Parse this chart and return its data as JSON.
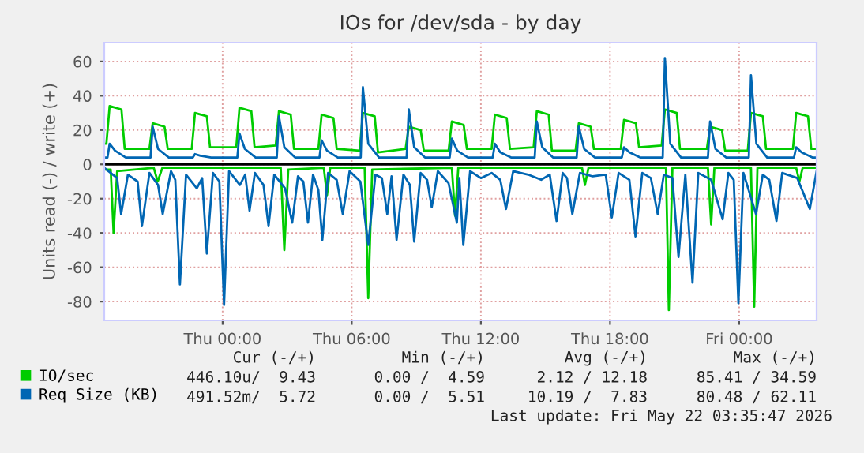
{
  "chart_data": {
    "type": "line",
    "title": "IOs for /dev/sda - by day",
    "ylabel": "Units read (-) / write (+)",
    "xlim": [
      "2026-05-20T18:30",
      "2026-05-22T03:36"
    ],
    "xticks": [
      {
        "value": "2026-05-21T00:00",
        "label": "Thu 00:00"
      },
      {
        "value": "2026-05-21T06:00",
        "label": "Thu 06:00"
      },
      {
        "value": "2026-05-21T12:00",
        "label": "Thu 12:00"
      },
      {
        "value": "2026-05-21T18:00",
        "label": "Thu 18:00"
      },
      {
        "value": "2026-05-22T00:00",
        "label": "Fri 00:00"
      }
    ],
    "ylim": [
      -91,
      71
    ],
    "yticks": [
      -80,
      -60,
      -40,
      -20,
      0,
      20,
      40,
      60
    ],
    "grid": true,
    "legend": "bottom",
    "marker": "none",
    "line_style": "solid",
    "ref_lines": [
      {
        "axis": "y",
        "value": 0,
        "color": "#000000"
      }
    ],
    "series": [
      {
        "name": "IO/sec",
        "color": "#00cc00",
        "x": [
          "2026-05-20T18:30",
          "2026-05-20T18:36",
          "2026-05-20T18:45",
          "2026-05-20T19:18",
          "2026-05-20T19:27",
          "2026-05-20T20:36",
          "2026-05-20T20:45",
          "2026-05-20T21:18",
          "2026-05-20T21:27",
          "2026-05-20T22:34",
          "2026-05-20T22:43",
          "2026-05-20T23:16",
          "2026-05-20T23:25",
          "2026-05-21T00:38",
          "2026-05-21T00:47",
          "2026-05-21T01:20",
          "2026-05-21T01:29",
          "2026-05-21T02:28",
          "2026-05-21T02:37",
          "2026-05-21T03:10",
          "2026-05-21T03:19",
          "2026-05-21T04:27",
          "2026-05-21T04:36",
          "2026-05-21T05:09",
          "2026-05-21T05:18",
          "2026-05-21T06:22",
          "2026-05-21T06:31",
          "2026-05-21T07:04",
          "2026-05-21T07:13",
          "2026-05-21T08:30",
          "2026-05-21T08:39",
          "2026-05-21T09:12",
          "2026-05-21T09:21",
          "2026-05-21T10:30",
          "2026-05-21T10:39",
          "2026-05-21T11:12",
          "2026-05-21T11:21",
          "2026-05-21T12:30",
          "2026-05-21T12:39",
          "2026-05-21T13:12",
          "2026-05-21T13:21",
          "2026-05-21T14:27",
          "2026-05-21T14:36",
          "2026-05-21T15:09",
          "2026-05-21T15:18",
          "2026-05-21T16:24",
          "2026-05-21T16:33",
          "2026-05-21T17:06",
          "2026-05-21T17:15",
          "2026-05-21T18:30",
          "2026-05-21T18:39",
          "2026-05-21T19:12",
          "2026-05-21T19:21",
          "2026-05-21T20:24",
          "2026-05-21T20:33",
          "2026-05-21T21:06",
          "2026-05-21T21:15",
          "2026-05-21T22:30",
          "2026-05-21T22:39",
          "2026-05-21T23:12",
          "2026-05-21T23:21",
          "2026-05-22T00:24",
          "2026-05-22T00:33",
          "2026-05-22T01:06",
          "2026-05-22T01:15",
          "2026-05-22T02:30",
          "2026-05-22T02:39",
          "2026-05-22T03:12",
          "2026-05-22T03:21",
          "2026-05-22T03:36"
        ],
        "values": [
          12,
          12,
          34,
          32,
          9,
          9,
          24,
          22,
          9,
          9,
          30,
          28,
          10,
          10,
          33,
          31,
          10,
          11,
          31,
          29,
          9,
          9,
          29,
          27,
          9,
          8,
          30,
          28,
          7,
          9,
          22,
          20,
          8,
          8,
          25,
          23,
          9,
          9,
          29,
          27,
          9,
          10,
          31,
          29,
          8,
          8,
          24,
          22,
          9,
          9,
          26,
          24,
          10,
          11,
          32,
          30,
          9,
          9,
          22,
          20,
          8,
          8,
          30,
          28,
          9,
          9,
          30,
          28,
          9,
          9
        ]
      },
      {
        "color": "#00cc00",
        "x": [
          "2026-05-20T18:30",
          "2026-05-20T18:48",
          "2026-05-20T18:56",
          "2026-05-20T19:06",
          "2026-05-20T20:48",
          "2026-05-20T20:59",
          "2026-05-20T21:12",
          "2026-05-21T02:42",
          "2026-05-21T02:52",
          "2026-05-21T03:03",
          "2026-05-21T04:42",
          "2026-05-21T04:51",
          "2026-05-21T05:00",
          "2026-05-21T06:36",
          "2026-05-21T06:46",
          "2026-05-21T06:57",
          "2026-05-21T10:39",
          "2026-05-21T10:48",
          "2026-05-21T10:57",
          "2026-05-21T16:42",
          "2026-05-21T16:50",
          "2026-05-21T17:00",
          "2026-05-21T20:36",
          "2026-05-21T20:44",
          "2026-05-21T20:54",
          "2026-05-21T22:33",
          "2026-05-21T22:42",
          "2026-05-21T22:51",
          "2026-05-22T00:33",
          "2026-05-22T00:42",
          "2026-05-22T00:51",
          "2026-05-22T02:39",
          "2026-05-22T02:48",
          "2026-05-22T02:57",
          "2026-05-22T03:36"
        ],
        "values": [
          -3,
          -3,
          -40,
          -4,
          -2,
          -10,
          -2,
          -2,
          -50,
          -3,
          -2,
          -18,
          -2,
          -2,
          -78,
          -3,
          -2,
          -30,
          -2,
          -2,
          -12,
          -2,
          -2,
          -85,
          -2,
          -2,
          -35,
          -2,
          -2,
          -83,
          -2,
          -2,
          -10,
          -2,
          -2
        ]
      },
      {
        "name": "Req Size (KB)",
        "color": "#0066b3",
        "x": [
          "2026-05-20T18:30",
          "2026-05-20T18:39",
          "2026-05-20T18:45",
          "2026-05-20T19:00",
          "2026-05-20T19:30",
          "2026-05-20T20:39",
          "2026-05-20T20:45",
          "2026-05-20T21:00",
          "2026-05-20T21:30",
          "2026-05-20T22:37",
          "2026-05-20T22:43",
          "2026-05-20T22:58",
          "2026-05-20T23:28",
          "2026-05-21T00:41",
          "2026-05-21T00:47",
          "2026-05-21T01:02",
          "2026-05-21T01:32",
          "2026-05-21T02:31",
          "2026-05-21T02:37",
          "2026-05-21T02:52",
          "2026-05-21T03:22",
          "2026-05-21T04:30",
          "2026-05-21T04:36",
          "2026-05-21T04:51",
          "2026-05-21T05:21",
          "2026-05-21T06:25",
          "2026-05-21T06:31",
          "2026-05-21T06:46",
          "2026-05-21T07:16",
          "2026-05-21T08:33",
          "2026-05-21T08:39",
          "2026-05-21T08:54",
          "2026-05-21T09:24",
          "2026-05-21T10:33",
          "2026-05-21T10:39",
          "2026-05-21T10:54",
          "2026-05-21T11:24",
          "2026-05-21T12:33",
          "2026-05-21T12:39",
          "2026-05-21T12:54",
          "2026-05-21T13:24",
          "2026-05-21T14:30",
          "2026-05-21T14:36",
          "2026-05-21T14:51",
          "2026-05-21T15:21",
          "2026-05-21T16:27",
          "2026-05-21T16:33",
          "2026-05-21T16:48",
          "2026-05-21T17:18",
          "2026-05-21T18:33",
          "2026-05-21T18:39",
          "2026-05-21T18:54",
          "2026-05-21T19:24",
          "2026-05-21T20:27",
          "2026-05-21T20:33",
          "2026-05-21T20:48",
          "2026-05-21T21:18",
          "2026-05-21T22:33",
          "2026-05-21T22:39",
          "2026-05-21T22:54",
          "2026-05-21T23:24",
          "2026-05-22T00:27",
          "2026-05-22T00:33",
          "2026-05-22T00:48",
          "2026-05-22T01:18",
          "2026-05-22T02:33",
          "2026-05-22T02:39",
          "2026-05-22T02:54",
          "2026-05-22T03:24",
          "2026-05-22T03:36"
        ],
        "values": [
          4,
          4,
          12,
          8,
          4,
          4,
          22,
          9,
          4,
          4,
          6,
          5,
          4,
          4,
          18,
          9,
          4,
          4,
          28,
          10,
          4,
          4,
          14,
          8,
          4,
          4,
          45,
          12,
          4,
          4,
          32,
          10,
          4,
          4,
          15,
          8,
          4,
          4,
          12,
          7,
          4,
          4,
          25,
          10,
          4,
          4,
          22,
          9,
          4,
          4,
          10,
          7,
          4,
          4,
          62,
          12,
          4,
          4,
          25,
          9,
          4,
          4,
          52,
          12,
          4,
          4,
          10,
          7,
          4,
          4
        ]
      },
      {
        "color": "#0066b3",
        "x": [
          "2026-05-20T18:30",
          "2026-05-20T19:06",
          "2026-05-20T19:17",
          "2026-05-20T19:36",
          "2026-05-20T20:03",
          "2026-05-20T20:15",
          "2026-05-20T20:36",
          "2026-05-20T21:00",
          "2026-05-20T21:13",
          "2026-05-20T21:36",
          "2026-05-20T21:48",
          "2026-05-20T22:01",
          "2026-05-20T22:18",
          "2026-05-20T22:48",
          "2026-05-20T23:03",
          "2026-05-20T23:16",
          "2026-05-20T23:33",
          "2026-05-20T23:51",
          "2026-05-21T00:04",
          "2026-05-21T00:18",
          "2026-05-21T00:48",
          "2026-05-21T01:03",
          "2026-05-21T01:15",
          "2026-05-21T01:30",
          "2026-05-21T01:54",
          "2026-05-21T02:08",
          "2026-05-21T02:24",
          "2026-05-21T02:54",
          "2026-05-21T03:14",
          "2026-05-21T03:30",
          "2026-05-21T03:45",
          "2026-05-21T03:58",
          "2026-05-21T04:12",
          "2026-05-21T04:27",
          "2026-05-21T04:38",
          "2026-05-21T04:54",
          "2026-05-21T05:18",
          "2026-05-21T05:35",
          "2026-05-21T05:54",
          "2026-05-21T06:24",
          "2026-05-21T06:46",
          "2026-05-21T07:06",
          "2026-05-21T07:24",
          "2026-05-21T07:39",
          "2026-05-21T07:51",
          "2026-05-21T08:05",
          "2026-05-21T08:24",
          "2026-05-21T08:42",
          "2026-05-21T08:54",
          "2026-05-21T09:12",
          "2026-05-21T09:30",
          "2026-05-21T09:43",
          "2026-05-21T10:00",
          "2026-05-21T10:30",
          "2026-05-21T10:53",
          "2026-05-21T11:00",
          "2026-05-21T11:11",
          "2026-05-21T11:30",
          "2026-05-21T12:00",
          "2026-05-21T12:30",
          "2026-05-21T12:54",
          "2026-05-21T13:10",
          "2026-05-21T13:30",
          "2026-05-21T14:12",
          "2026-05-21T14:48",
          "2026-05-21T15:12",
          "2026-05-21T15:31",
          "2026-05-21T15:48",
          "2026-05-21T16:00",
          "2026-05-21T16:15",
          "2026-05-21T16:36",
          "2026-05-21T17:12",
          "2026-05-21T17:48",
          "2026-05-21T18:05",
          "2026-05-21T18:24",
          "2026-05-21T18:54",
          "2026-05-21T19:11",
          "2026-05-21T19:30",
          "2026-05-21T19:54",
          "2026-05-21T20:13",
          "2026-05-21T20:30",
          "2026-05-21T20:54",
          "2026-05-21T21:11",
          "2026-05-21T21:30",
          "2026-05-21T21:50",
          "2026-05-21T22:06",
          "2026-05-21T22:42",
          "2026-05-21T23:14",
          "2026-05-21T23:30",
          "2026-05-21T23:45",
          "2026-05-21T23:58",
          "2026-05-22T00:12",
          "2026-05-22T00:47",
          "2026-05-22T01:06",
          "2026-05-22T01:24",
          "2026-05-22T01:44",
          "2026-05-22T02:00",
          "2026-05-22T02:42",
          "2026-05-22T03:17",
          "2026-05-22T03:36"
        ],
        "values": [
          -2,
          -8,
          -29,
          -6,
          -10,
          -36,
          -5,
          -12,
          -29,
          -4,
          -9,
          -70,
          -6,
          -14,
          -8,
          -52,
          -5,
          -10,
          -82,
          -4,
          -12,
          -6,
          -27,
          -5,
          -12,
          -36,
          -6,
          -14,
          -34,
          -7,
          -10,
          -34,
          -6,
          -15,
          -44,
          -5,
          -9,
          -29,
          -4,
          -10,
          -47,
          -6,
          -8,
          -29,
          -7,
          -44,
          -6,
          -12,
          -45,
          -5,
          -9,
          -25,
          -4,
          -11,
          -34,
          -8,
          -47,
          -4,
          -8,
          -5,
          -9,
          -26,
          -4,
          -6,
          -9,
          -6,
          -33,
          -5,
          -8,
          -29,
          -5,
          -7,
          -6,
          -31,
          -5,
          -9,
          -42,
          -5,
          -8,
          -29,
          -6,
          -8,
          -54,
          -6,
          -69,
          -5,
          -9,
          -32,
          -5,
          -9,
          -81,
          -5,
          -29,
          -6,
          -9,
          -33,
          -5,
          -8,
          -26,
          -4
        ]
      }
    ],
    "annotations": [
      "Cur (-/+)",
      "Min (-/+)",
      "Avg (-/+)",
      "Max (-/+)",
      "446.10u/  9.43",
      "0.00 /  4.59",
      "2.12 / 12.18",
      "85.41 / 34.59",
      "491.52m/  5.72",
      "0.00 /  5.51",
      "10.19 /  7.83",
      "80.48 / 62.11",
      "Last update: Fri May 22 03:35:47 2026"
    ]
  }
}
